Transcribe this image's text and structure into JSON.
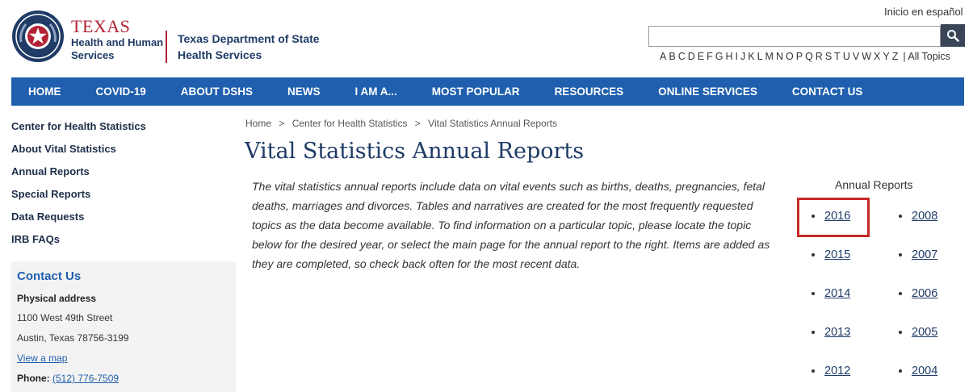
{
  "header": {
    "agency_title": "TEXAS",
    "agency_sub_line1": "Health and Human",
    "agency_sub_line2": "Services",
    "dept_line1": "Texas Department of State",
    "dept_line2": "Health Services",
    "language_link": "Inicio en español",
    "search_placeholder": "",
    "az_letters": [
      "A",
      "B",
      "C",
      "D",
      "E",
      "F",
      "G",
      "H",
      "I",
      "J",
      "K",
      "L",
      "M",
      "N",
      "O",
      "P",
      "Q",
      "R",
      "S",
      "T",
      "U",
      "V",
      "W",
      "X",
      "Y",
      "Z"
    ],
    "all_topics": "| All Topics"
  },
  "nav": {
    "items": [
      "HOME",
      "COVID-19",
      "ABOUT DSHS",
      "NEWS",
      "I AM A...",
      "MOST POPULAR",
      "RESOURCES",
      "ONLINE SERVICES",
      "CONTACT US"
    ]
  },
  "sidebar": {
    "links": [
      "Center for Health Statistics",
      "About Vital Statistics",
      "Annual Reports",
      "Special Reports",
      "Data Requests",
      "IRB FAQs"
    ],
    "contact": {
      "title": "Contact Us",
      "address_label": "Physical address",
      "address_line1": "1100 West 49th Street",
      "address_line2": "Austin, Texas 78756-3199",
      "map_link": "View a map",
      "phone_label": "Phone:",
      "phone_value": "(512) 776-7509"
    }
  },
  "main": {
    "breadcrumb": [
      "Home",
      "Center for Health Statistics",
      "Vital Statistics Annual Reports"
    ],
    "breadcrumb_sep": ">",
    "title": "Vital Statistics Annual Reports",
    "intro": "The vital statistics annual reports include data on vital events such as births, deaths, pregnancies, fetal deaths, marriages and divorces. Tables and narratives are created for the most frequently requested topics as the data become available. To find information on a particular topic, please locate the topic below for the desired year, or select the main page for the annual report to the right. Items are added as they are completed, so check back often for the most recent data."
  },
  "reports": {
    "heading": "Annual Reports",
    "left": [
      "2016",
      "2015",
      "2014",
      "2013",
      "2012"
    ],
    "right": [
      "2008",
      "2007",
      "2006",
      "2005",
      "2004"
    ]
  },
  "colors": {
    "nav_bg": "#1f5fae",
    "brand_red": "#b22234",
    "brand_navy": "#1f3b66",
    "highlight": "#c62828"
  }
}
